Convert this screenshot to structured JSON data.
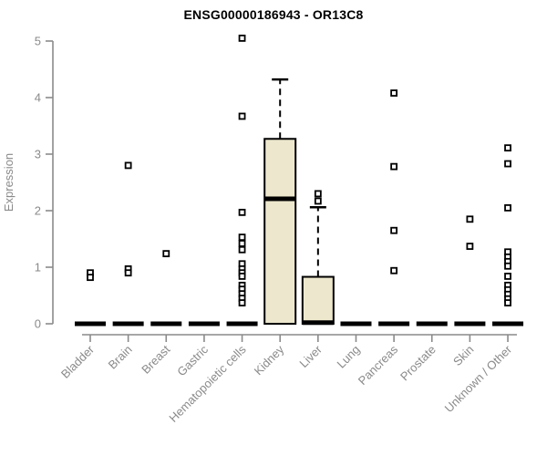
{
  "title": "ENSG00000186943 - OR13C8",
  "chart_data": {
    "type": "boxplot",
    "title": "ENSG00000186943 - OR13C8",
    "xlabel": "",
    "ylabel": "Expression",
    "ylim": [
      0,
      5
    ],
    "yticks": [
      0,
      1,
      2,
      3,
      4,
      5
    ],
    "grid": false,
    "legend": "none",
    "categories": [
      "Bladder",
      "Brain",
      "Breast",
      "Gastric",
      "Hematopoietic cells",
      "Kidney",
      "Liver",
      "Lung",
      "Pancreas",
      "Prostate",
      "Skin",
      "Unknown / Other"
    ],
    "series": [
      {
        "category": "Bladder",
        "box": {
          "q1": 0,
          "median": 0,
          "q3": 0,
          "whisker_high": 0
        },
        "outliers": [
          0.9,
          0.82
        ]
      },
      {
        "category": "Brain",
        "box": {
          "q1": 0,
          "median": 0,
          "q3": 0,
          "whisker_high": 0
        },
        "outliers": [
          2.8,
          0.97,
          0.9
        ]
      },
      {
        "category": "Breast",
        "box": {
          "q1": 0,
          "median": 0,
          "q3": 0,
          "whisker_high": 0
        },
        "outliers": [
          1.24
        ]
      },
      {
        "category": "Gastric",
        "box": {
          "q1": 0,
          "median": 0,
          "q3": 0,
          "whisker_high": 0
        },
        "outliers": []
      },
      {
        "category": "Hematopoietic cells",
        "box": {
          "q1": 0,
          "median": 0,
          "q3": 0,
          "whisker_high": 0
        },
        "outliers": [
          5.05,
          3.67,
          1.97,
          1.53,
          1.42,
          1.31,
          1.06,
          0.97,
          0.9,
          0.84,
          0.68,
          0.61,
          0.53,
          0.45,
          0.37
        ]
      },
      {
        "category": "Kidney",
        "box": {
          "q1": 0,
          "median": 2.21,
          "q3": 3.27,
          "whisker_high": 4.32
        },
        "outliers": []
      },
      {
        "category": "Liver",
        "box": {
          "q1": 0,
          "median": 0.02,
          "q3": 0.83,
          "whisker_high": 2.06
        },
        "outliers": [
          2.3,
          2.17
        ]
      },
      {
        "category": "Lung",
        "box": {
          "q1": 0,
          "median": 0,
          "q3": 0,
          "whisker_high": 0
        },
        "outliers": []
      },
      {
        "category": "Pancreas",
        "box": {
          "q1": 0,
          "median": 0,
          "q3": 0,
          "whisker_high": 0
        },
        "outliers": [
          4.08,
          2.78,
          1.65,
          0.94
        ]
      },
      {
        "category": "Prostate",
        "box": {
          "q1": 0,
          "median": 0,
          "q3": 0,
          "whisker_high": 0
        },
        "outliers": []
      },
      {
        "category": "Skin",
        "box": {
          "q1": 0,
          "median": 0,
          "q3": 0,
          "whisker_high": 0
        },
        "outliers": [
          1.85,
          1.37
        ]
      },
      {
        "category": "Unknown / Other",
        "box": {
          "q1": 0,
          "median": 0,
          "q3": 0,
          "whisker_high": 0
        },
        "outliers": [
          3.11,
          2.83,
          2.05,
          1.27,
          1.18,
          1.1,
          1.02,
          0.84,
          0.68,
          0.6,
          0.52,
          0.44,
          0.37
        ]
      }
    ],
    "colors": {
      "box_fill": "#EDE8CD",
      "box_stroke": "#000000",
      "median": "#000000",
      "outlier_stroke": "#000000",
      "outlier_fill": "#ffffff",
      "axis": "#8a8a8a",
      "title": "#000000",
      "background": "#ffffff"
    }
  }
}
